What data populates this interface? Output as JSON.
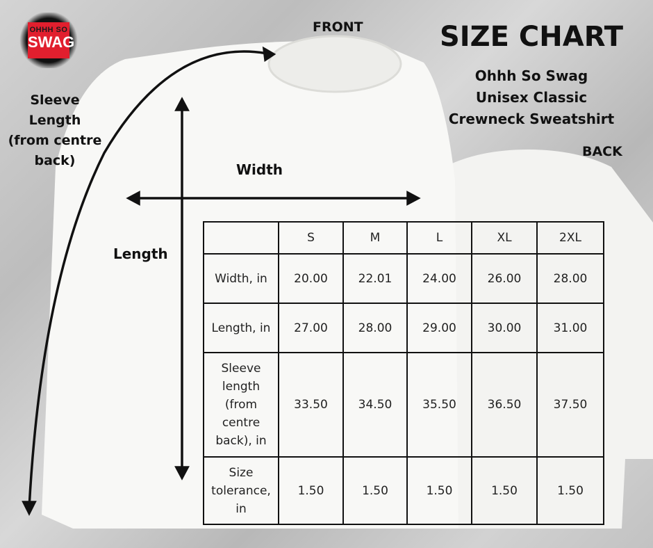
{
  "logo": {
    "line1": "OHHH SO",
    "line2": "SWAG"
  },
  "labels": {
    "front": "FRONT",
    "back": "BACK",
    "width": "Width",
    "length": "Length",
    "sleeve_length": [
      "Sleeve",
      "Length",
      "(from centre",
      "back)"
    ]
  },
  "header": {
    "title": "SIZE CHART",
    "subtitle_lines": [
      "Ohhh So Swag",
      "Unisex Classic",
      "Crewneck Sweatshirt"
    ]
  },
  "table": {
    "columns": [
      "",
      "S",
      "M",
      "L",
      "XL",
      "2XL"
    ],
    "rows": [
      {
        "label": "Width, in",
        "values": [
          "20.00",
          "22.01",
          "24.00",
          "26.00",
          "28.00"
        ]
      },
      {
        "label": "Length, in",
        "values": [
          "27.00",
          "28.00",
          "29.00",
          "30.00",
          "31.00"
        ]
      },
      {
        "label": "Sleeve length (from centre back), in",
        "values": [
          "33.50",
          "34.50",
          "35.50",
          "36.50",
          "37.50"
        ]
      },
      {
        "label": "Size tolerance, in",
        "values": [
          "1.50",
          "1.50",
          "1.50",
          "1.50",
          "1.50"
        ]
      }
    ]
  },
  "colors": {
    "logo_red": "#e11f2e",
    "shirt": "#f7f7f5",
    "background": "#c8c8c8"
  }
}
